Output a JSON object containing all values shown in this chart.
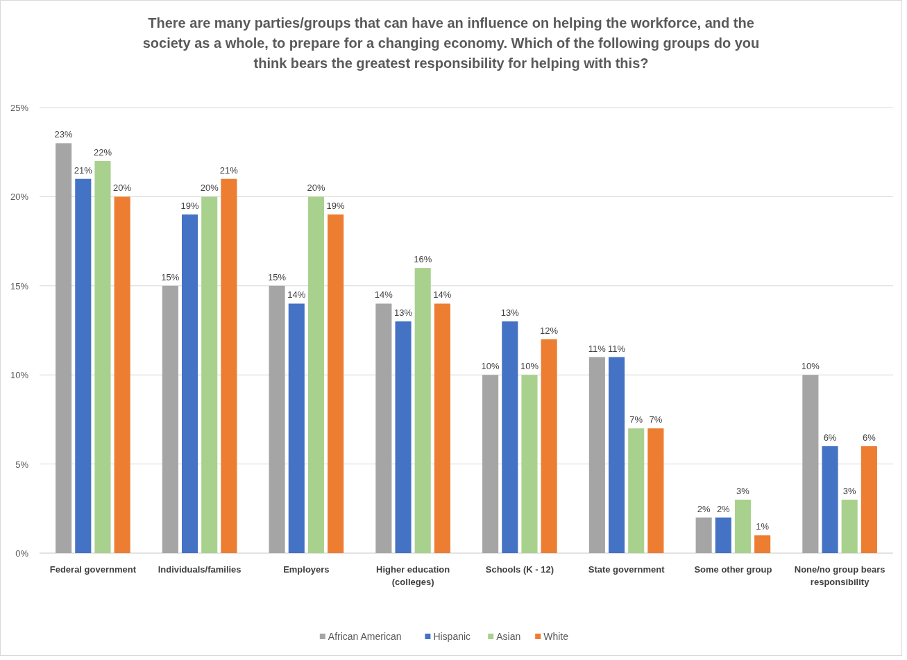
{
  "chart_data": {
    "type": "bar",
    "title": "There are many parties/groups that can have an influence on helping the workforce, and the society as a whole, to prepare for a changing economy. Which of the following groups do you think bears the greatest responsibility for helping with this?",
    "categories": [
      "Federal government",
      "Individuals/families",
      "Employers",
      "Higher education (colleges)",
      "Schools (K - 12)",
      "State government",
      "Some other group",
      "None/no group bears responsibility"
    ],
    "series": [
      {
        "name": "African American",
        "color": "#a5a5a5",
        "values": [
          23,
          15,
          15,
          14,
          10,
          11,
          2,
          10
        ],
        "value_labels": [
          "23%",
          "15%",
          "15%",
          "14%",
          "10%",
          "11%",
          "2%",
          "10%"
        ]
      },
      {
        "name": "Hispanic",
        "color": "#4472c4",
        "values": [
          21,
          19,
          14,
          13,
          13,
          11,
          2,
          6
        ],
        "value_labels": [
          "21%",
          "19%",
          "14%",
          "13%",
          "13%",
          "11%",
          "2%",
          "6%"
        ]
      },
      {
        "name": "Asian",
        "color": "#a9d18e",
        "values": [
          22,
          20,
          20,
          16,
          10,
          7,
          3,
          3
        ],
        "value_labels": [
          "22%",
          "20%",
          "20%",
          "16%",
          "10%",
          "7%",
          "3%",
          "3%"
        ]
      },
      {
        "name": "White",
        "color": "#ed7d31",
        "values": [
          20,
          21,
          19,
          14,
          12,
          7,
          1,
          6
        ],
        "value_labels": [
          "20%",
          "21%",
          "19%",
          "14%",
          "12%",
          "7%",
          "1%",
          "6%"
        ]
      }
    ],
    "ylim": [
      0,
      25
    ],
    "yticks": [
      {
        "value": 0,
        "label": "0%"
      },
      {
        "value": 5,
        "label": "5%"
      },
      {
        "value": 10,
        "label": "10%"
      },
      {
        "value": 15,
        "label": "15%"
      },
      {
        "value": 20,
        "label": "20%"
      },
      {
        "value": 25,
        "label": "25%"
      }
    ],
    "grid": "y",
    "legend": "bottom"
  }
}
